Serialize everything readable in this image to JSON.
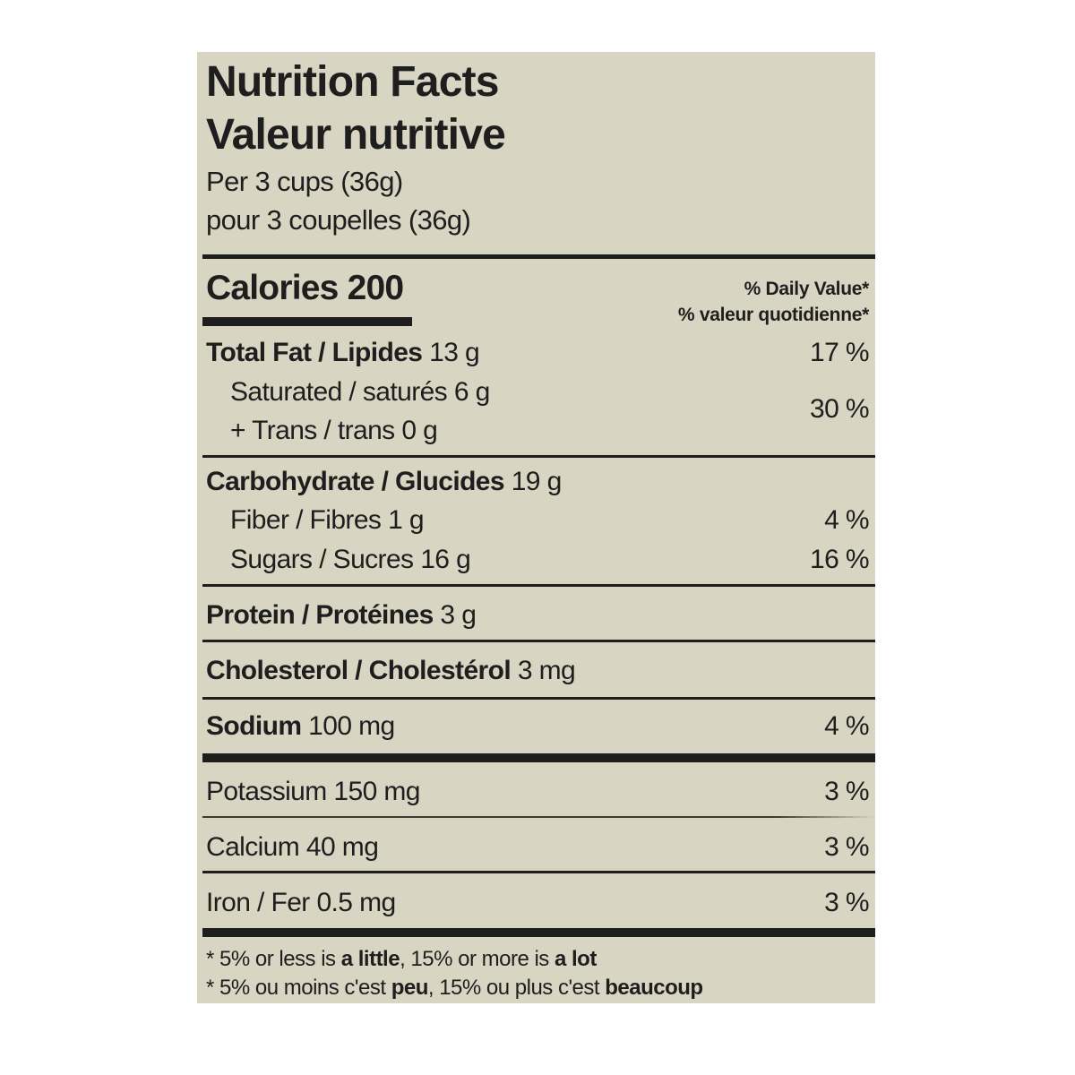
{
  "label": {
    "title_en": "Nutrition Facts",
    "title_fr": "Valeur nutritive",
    "serving_en": "Per 3 cups (36g)",
    "serving_fr": "pour 3 coupelles (36g)",
    "calories_label": "Calories",
    "calories_value": "200",
    "dv_header_en": "% Daily Value*",
    "dv_header_fr": "% valeur quotidienne*",
    "background_color": "#d8d5c3",
    "rows": {
      "total_fat": {
        "label": "Total Fat / Lipides",
        "amount": "13 g",
        "dv": "17 %"
      },
      "saturated": {
        "label": "Saturated / saturés",
        "amount": "6 g"
      },
      "trans": {
        "label": "+ Trans / trans",
        "amount": "0 g"
      },
      "sat_trans_dv": "30 %",
      "carbohydrate": {
        "label": "Carbohydrate / Glucides",
        "amount": "19 g"
      },
      "fiber": {
        "label": "Fiber / Fibres",
        "amount": "1 g",
        "dv": "4 %"
      },
      "sugars": {
        "label": "Sugars / Sucres",
        "amount": "16 g",
        "dv": "16 %"
      },
      "protein": {
        "label": "Protein / Protéines",
        "amount": "3 g"
      },
      "cholesterol": {
        "label": "Cholesterol / Cholestérol",
        "amount": "3 mg"
      },
      "sodium": {
        "label": "Sodium",
        "amount": "100 mg",
        "dv": "4 %"
      },
      "potassium": {
        "label": "Potassium",
        "amount": "150 mg",
        "dv": "3 %"
      },
      "calcium": {
        "label": "Calcium",
        "amount": "40 mg",
        "dv": "3 %"
      },
      "iron": {
        "label": "Iron / Fer",
        "amount": "0.5 mg",
        "dv": "3 %"
      }
    },
    "footnote_en": {
      "a": "* 5% or less is ",
      "b": "a little",
      "c": ", 15% or more is ",
      "d": "a lot"
    },
    "footnote_fr": {
      "a": "* 5% ou moins c'est ",
      "b": "peu",
      "c": ", 15% ou plus c'est ",
      "d": "beaucoup"
    }
  }
}
